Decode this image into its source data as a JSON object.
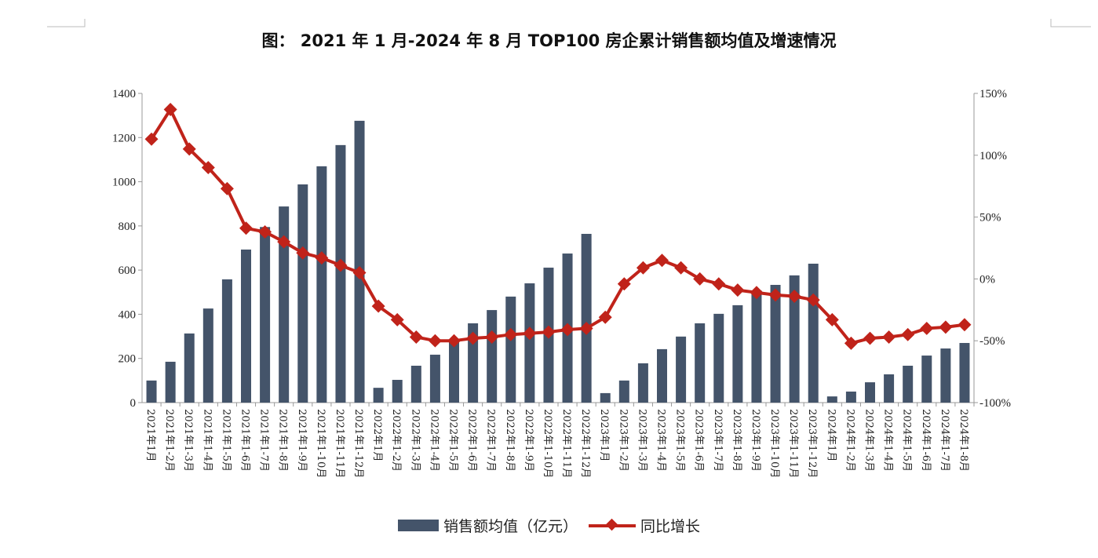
{
  "title": "图：  2021 年 1 月-2024 年 8 月 TOP100 房企累计销售额均值及增速情况",
  "chart_data": {
    "type": "bar+line",
    "title": "图：  2021 年 1 月-2024 年 8 月 TOP100 房企累计销售额均值及增速情况",
    "categories": [
      "2021年1月",
      "2021年1-2月",
      "2021年1-3月",
      "2021年1-4月",
      "2021年1-5月",
      "2021年1-6月",
      "2021年1-7月",
      "2021年1-8月",
      "2021年1-9月",
      "2021年1-10月",
      "2021年1-11月",
      "2021年1-12月",
      "2022年1月",
      "2022年1-2月",
      "2022年1-3月",
      "2022年1-4月",
      "2022年1-5月",
      "2022年1-6月",
      "2022年1-7月",
      "2022年1-8月",
      "2022年1-9月",
      "2022年1-10月",
      "2022年1-11月",
      "2022年1-12月",
      "2023年1月",
      "2023年1-2月",
      "2023年1-3月",
      "2023年1-4月",
      "2023年1-5月",
      "2023年1-6月",
      "2023年1-7月",
      "2023年1-8月",
      "2023年1-9月",
      "2023年1-10月",
      "2023年1-11月",
      "2023年1-12月",
      "2024年1月",
      "2024年1-2月",
      "2024年1-3月",
      "2024年1-4月",
      "2024年1-5月",
      "2024年1-6月",
      "2024年1-7月",
      "2024年1-8月"
    ],
    "series": [
      {
        "name": "销售额均值（亿元）",
        "type": "bar",
        "axis": "left",
        "color": "#44546a",
        "values": [
          100,
          185,
          313,
          426,
          558,
          693,
          795,
          888,
          988,
          1070,
          1166,
          1276,
          67,
          103,
          167,
          217,
          284,
          359,
          419,
          480,
          540,
          611,
          675,
          764,
          43,
          100,
          178,
          242,
          299,
          359,
          402,
          441,
          508,
          533,
          576,
          629,
          28,
          50,
          92,
          128,
          167,
          213,
          245,
          270
        ]
      },
      {
        "name": "同比增长",
        "type": "line",
        "axis": "right",
        "color": "#c0231a",
        "values": [
          113,
          137,
          105,
          90,
          73,
          41,
          38,
          30,
          21,
          17,
          11,
          5,
          -22,
          -33,
          -47,
          -50,
          -50,
          -48,
          -47,
          -45,
          -44,
          -43,
          -41,
          -40,
          -31,
          -4,
          9,
          15,
          9,
          0,
          -4,
          -9,
          -11,
          -13,
          -14,
          -17,
          -33,
          -52,
          -48,
          -47,
          -45,
          -40,
          -39,
          -37
        ]
      }
    ],
    "y_left": {
      "range": [
        0,
        1400
      ],
      "ticks": [
        "0",
        "200",
        "400",
        "600",
        "800",
        "1000",
        "1200",
        "1400"
      ]
    },
    "y_right": {
      "range": [
        -100,
        150
      ],
      "ticks": [
        "-100%",
        "-50%",
        "0%",
        "50%",
        "100%",
        "150%"
      ]
    },
    "grid": false,
    "legend": "bottom"
  }
}
